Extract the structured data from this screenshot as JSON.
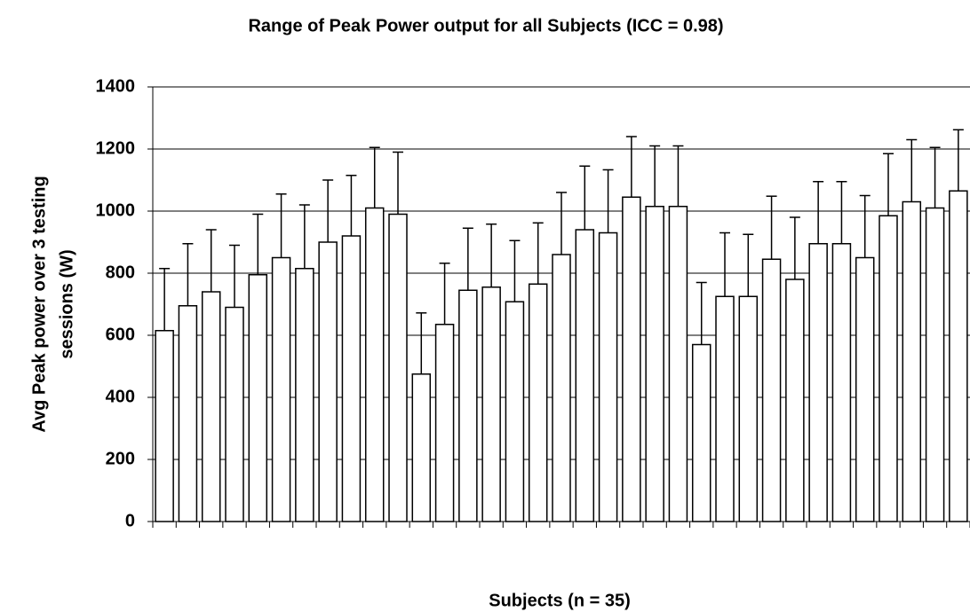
{
  "chart_data": {
    "type": "bar",
    "title": "Range of Peak Power output for all Subjects  (ICC = 0.98)",
    "xlabel": "Subjects (n = 35)",
    "ylabel": [
      "Avg Peak power over 3 testing",
      "sessions (W)"
    ],
    "categories": [
      null,
      null,
      null,
      null,
      null,
      null,
      null,
      null,
      null,
      null,
      null,
      null,
      null,
      null,
      null,
      null,
      null,
      null,
      null,
      null,
      null,
      null,
      null,
      null,
      null,
      null,
      null,
      null,
      null,
      null,
      null,
      null,
      null,
      null,
      null
    ],
    "values": [
      615,
      695,
      740,
      690,
      795,
      850,
      815,
      900,
      920,
      1010,
      990,
      475,
      635,
      745,
      755,
      708,
      765,
      860,
      940,
      930,
      1045,
      1015,
      1015,
      570,
      725,
      725,
      845,
      780,
      895,
      895,
      850,
      985,
      1030,
      1010,
      1065
    ],
    "errors": [
      200,
      200,
      200,
      200,
      195,
      205,
      205,
      200,
      195,
      195,
      200,
      197,
      197,
      200,
      203,
      197,
      197,
      200,
      205,
      203,
      195,
      195,
      195,
      200,
      205,
      200,
      203,
      200,
      200,
      200,
      200,
      200,
      200,
      195,
      197
    ],
    "color": "#ffffff",
    "ylim": [
      0,
      1400
    ],
    "yticks": [
      0,
      200,
      400,
      600,
      800,
      1000,
      1200,
      1400
    ],
    "grid": true
  }
}
